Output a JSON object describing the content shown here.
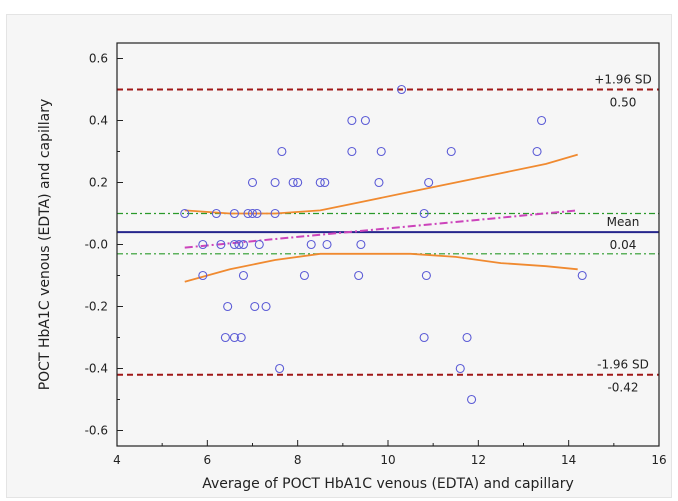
{
  "chart_data": {
    "type": "scatter",
    "title": "",
    "xlabel": "Average of POCT HbA1C venous (EDTA) and capillary",
    "ylabel": "POCT HbA1C venous (EDTA) and capillary",
    "xlim": [
      4,
      16
    ],
    "ylim": [
      -0.65,
      0.65
    ],
    "x_ticks": [
      4,
      6,
      8,
      10,
      12,
      14,
      16
    ],
    "x_tick_labels": [
      "4",
      "6",
      "8",
      "10",
      "12",
      "14",
      "16"
    ],
    "y_ticks": [
      0.6,
      0.4,
      0.2,
      0.0,
      -0.2,
      -0.4,
      -0.6
    ],
    "y_tick_labels": [
      "0.6",
      "0.4",
      "0.2",
      "-0.0",
      "-0.2",
      "-0.4",
      "-0.6"
    ],
    "grid": false,
    "points": [
      {
        "x": 5.5,
        "y": 0.1
      },
      {
        "x": 5.9,
        "y": -0.1
      },
      {
        "x": 5.9,
        "y": 0.0
      },
      {
        "x": 6.2,
        "y": 0.1
      },
      {
        "x": 6.3,
        "y": 0.0
      },
      {
        "x": 6.4,
        "y": -0.3
      },
      {
        "x": 6.45,
        "y": -0.2
      },
      {
        "x": 6.6,
        "y": -0.3
      },
      {
        "x": 6.6,
        "y": 0.1
      },
      {
        "x": 6.6,
        "y": 0.0
      },
      {
        "x": 6.7,
        "y": 0.0
      },
      {
        "x": 6.75,
        "y": -0.3
      },
      {
        "x": 6.8,
        "y": -0.1
      },
      {
        "x": 6.8,
        "y": 0.0
      },
      {
        "x": 6.9,
        "y": 0.1
      },
      {
        "x": 7.0,
        "y": 0.1
      },
      {
        "x": 7.0,
        "y": 0.2
      },
      {
        "x": 7.05,
        "y": -0.2
      },
      {
        "x": 7.1,
        "y": 0.1
      },
      {
        "x": 7.15,
        "y": 0.0
      },
      {
        "x": 7.3,
        "y": -0.2
      },
      {
        "x": 7.5,
        "y": 0.2
      },
      {
        "x": 7.5,
        "y": 0.1
      },
      {
        "x": 7.6,
        "y": -0.4
      },
      {
        "x": 7.65,
        "y": 0.3
      },
      {
        "x": 7.9,
        "y": 0.2
      },
      {
        "x": 8.0,
        "y": 0.2
      },
      {
        "x": 8.15,
        "y": -0.1
      },
      {
        "x": 8.3,
        "y": 0.0
      },
      {
        "x": 8.5,
        "y": 0.2
      },
      {
        "x": 8.6,
        "y": 0.2
      },
      {
        "x": 8.65,
        "y": 0.0
      },
      {
        "x": 9.2,
        "y": 0.4
      },
      {
        "x": 9.2,
        "y": 0.3
      },
      {
        "x": 9.35,
        "y": -0.1
      },
      {
        "x": 9.4,
        "y": 0.0
      },
      {
        "x": 9.5,
        "y": 0.4
      },
      {
        "x": 9.8,
        "y": 0.2
      },
      {
        "x": 9.85,
        "y": 0.3
      },
      {
        "x": 10.3,
        "y": 0.5
      },
      {
        "x": 10.8,
        "y": 0.1
      },
      {
        "x": 10.8,
        "y": -0.3
      },
      {
        "x": 10.85,
        "y": -0.1
      },
      {
        "x": 10.9,
        "y": 0.2
      },
      {
        "x": 11.4,
        "y": 0.3
      },
      {
        "x": 11.6,
        "y": -0.4
      },
      {
        "x": 11.75,
        "y": -0.3
      },
      {
        "x": 11.85,
        "y": -0.5
      },
      {
        "x": 13.3,
        "y": 0.3
      },
      {
        "x": 13.4,
        "y": 0.4
      },
      {
        "x": 14.3,
        "y": -0.1
      }
    ],
    "reference_lines": [
      {
        "name": "upper_loa",
        "y": 0.5,
        "style": "dashed",
        "color": "#a01818",
        "label_above": "+1.96 SD",
        "label_below": "0.50"
      },
      {
        "name": "mean",
        "y": 0.04,
        "style": "solid",
        "color": "#26268c",
        "label_above": "Mean",
        "label_below": "0.04"
      },
      {
        "name": "lower_loa",
        "y": -0.42,
        "style": "dashed",
        "color": "#a01818",
        "label_above": "-1.96 SD",
        "label_below": "-0.42"
      },
      {
        "name": "mean_ci_upper",
        "y": 0.1,
        "style": "dash-dot",
        "color": "#2a9a2a"
      },
      {
        "name": "mean_ci_lower",
        "y": -0.03,
        "style": "dash-dot",
        "color": "#2a9a2a"
      }
    ],
    "regression_line": {
      "style": "dash-dot",
      "color": "#cc44bb",
      "x": [
        5.5,
        14.2
      ],
      "y": [
        -0.01,
        0.11
      ]
    },
    "confidence_curves": {
      "color": "#f08a30",
      "upper": {
        "x": [
          5.5,
          6.5,
          7.5,
          8.5,
          9.5,
          10.5,
          11.5,
          12.5,
          13.5,
          14.2
        ],
        "y": [
          0.11,
          0.1,
          0.1,
          0.11,
          0.14,
          0.17,
          0.2,
          0.23,
          0.26,
          0.29
        ]
      },
      "lower": {
        "x": [
          5.5,
          6.5,
          7.5,
          8.5,
          9.5,
          10.5,
          11.5,
          12.5,
          13.5,
          14.2
        ],
        "y": [
          -0.12,
          -0.08,
          -0.05,
          -0.03,
          -0.03,
          -0.03,
          -0.04,
          -0.06,
          -0.07,
          -0.08
        ]
      }
    }
  }
}
